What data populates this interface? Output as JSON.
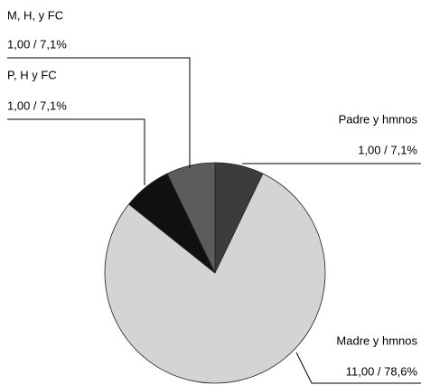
{
  "chart_data": {
    "type": "pie",
    "categories": [
      "Padre y hmnos",
      "Madre y hmnos",
      "P, H y FC",
      "M, H, y FC"
    ],
    "values": [
      1,
      11,
      1,
      1
    ],
    "value_labels": [
      "1,00 / 7,1%",
      "11,00 / 78,6%",
      "1,00 / 7,1%",
      "1,00 / 7,1%"
    ],
    "colors": [
      "#3c3c3c",
      "#d4d4d4",
      "#101010",
      "#5c5c5c"
    ]
  }
}
